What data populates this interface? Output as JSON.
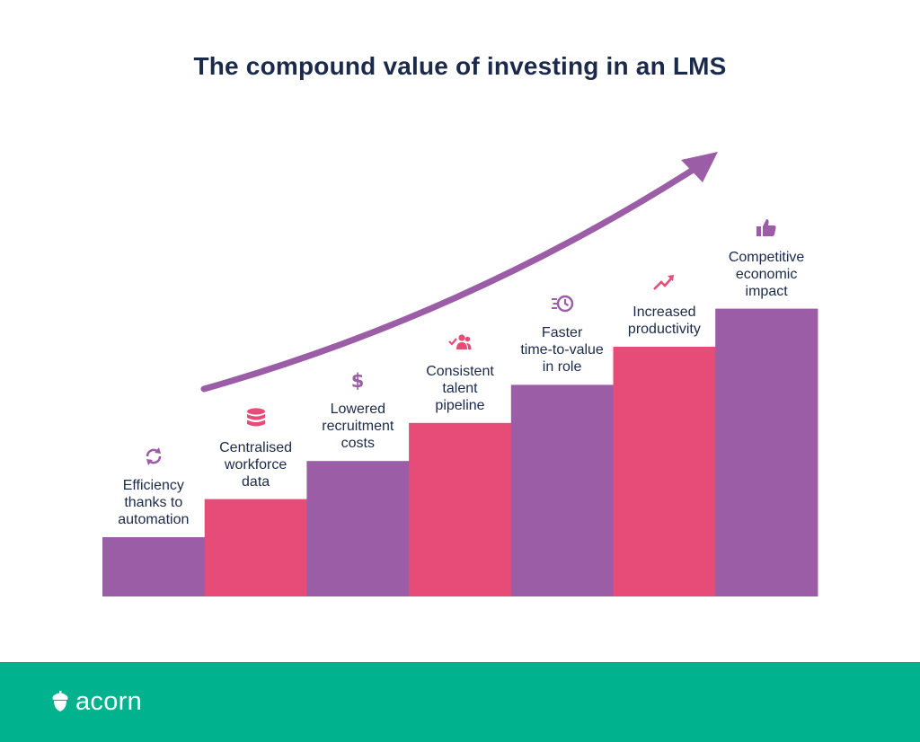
{
  "title": "The compound value of investing in an LMS",
  "colors": {
    "purple": "#9b5da6",
    "pink": "#e74c78",
    "arrow": "#9b5da6",
    "title": "#1b2a4a",
    "footer": "#00b28e"
  },
  "steps": [
    {
      "label": "Efficiency\nthanks to\nautomation",
      "icon": "refresh-icon",
      "color": "purple",
      "level": 1
    },
    {
      "label": "Centralised\nworkforce\ndata",
      "icon": "database-icon",
      "color": "pink",
      "level": 2
    },
    {
      "label": "Lowered\nrecruitment\ncosts",
      "icon": "dollar-icon",
      "color": "purple",
      "level": 3
    },
    {
      "label": "Consistent\ntalent\npipeline",
      "icon": "team-check-icon",
      "color": "pink",
      "level": 4
    },
    {
      "label": "Faster\ntime-to-value\nin role",
      "icon": "fast-clock-icon",
      "color": "purple",
      "level": 5
    },
    {
      "label": "Increased\nproductivity",
      "icon": "trend-up-icon",
      "color": "pink",
      "level": 6
    },
    {
      "label": "Competitive\neconomic\nimpact",
      "icon": "thumbs-up-icon",
      "color": "purple",
      "level": 7
    }
  ],
  "footer": {
    "brand": "acorn",
    "logo_icon": "acorn-logo-icon"
  }
}
